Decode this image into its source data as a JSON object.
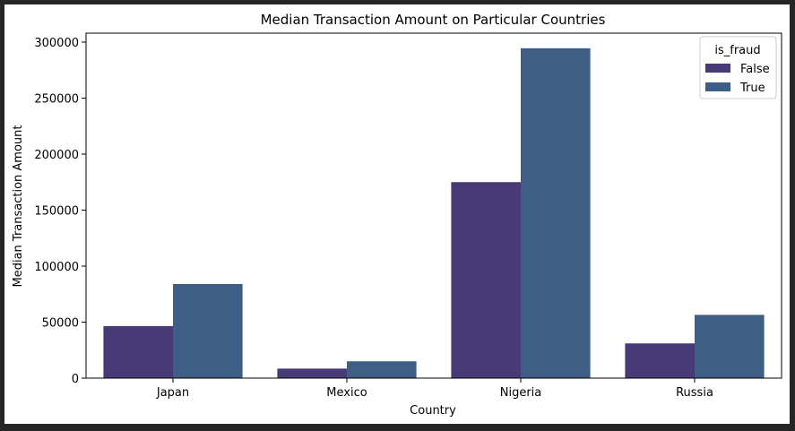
{
  "chart_data": {
    "type": "bar",
    "title": "Median Transaction Amount on Particular Countries",
    "xlabel": "Country",
    "ylabel": "Median Transaction Amount",
    "categories": [
      "Japan",
      "Mexico",
      "Nigeria",
      "Russia"
    ],
    "series": [
      {
        "name": "False",
        "values": [
          46500,
          8500,
          175000,
          31000
        ],
        "color": "#483a76"
      },
      {
        "name": "True",
        "values": [
          84000,
          15000,
          294500,
          56500
        ],
        "color": "#3e5e86"
      }
    ],
    "ylim": [
      0,
      308000
    ],
    "yticks": [
      0,
      50000,
      100000,
      150000,
      200000,
      250000,
      300000
    ],
    "legend": {
      "title": "is_fraud",
      "position": "top-right"
    },
    "grid": false
  }
}
